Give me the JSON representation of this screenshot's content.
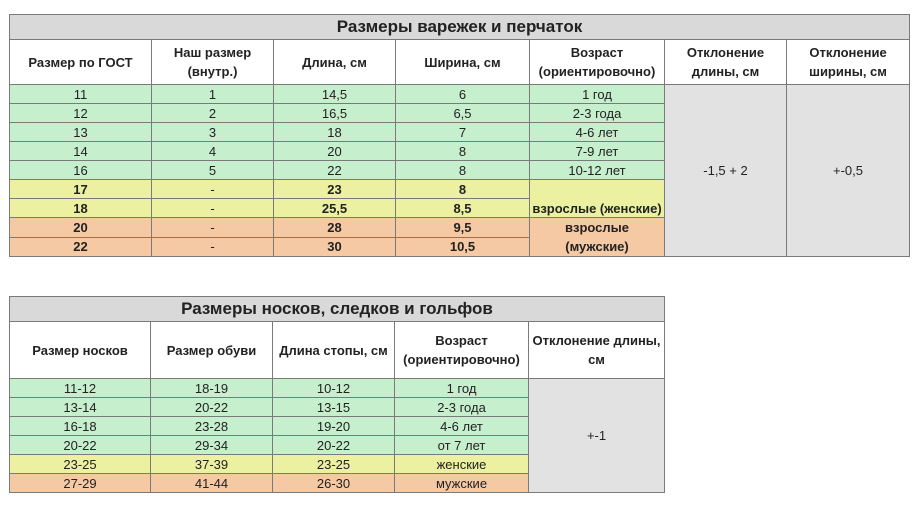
{
  "gloves": {
    "title": "Размеры варежек и перчаток",
    "headers": [
      "Размер по ГОСТ",
      "Наш размер (внутр.)",
      "Длина, см",
      "Ширина, см",
      "Возраст (ориентировочно)",
      "Отклонение длины, см",
      "Отклонение ширины, см"
    ],
    "rows": [
      {
        "gost": "11",
        "ours": "1",
        "length": "14,5",
        "width": "6",
        "age": "1 год"
      },
      {
        "gost": "12",
        "ours": "2",
        "length": "16,5",
        "width": "6,5",
        "age": "2-3 года"
      },
      {
        "gost": "13",
        "ours": "3",
        "length": "18",
        "width": "7",
        "age": "4-6 лет"
      },
      {
        "gost": "14",
        "ours": "4",
        "length": "20",
        "width": "8",
        "age": "7-9 лет"
      },
      {
        "gost": "16",
        "ours": "5",
        "length": "22",
        "width": "8",
        "age": "10-12 лет"
      },
      {
        "gost": "17",
        "ours": "-",
        "length": "23",
        "width": "8"
      },
      {
        "gost": "18",
        "ours": "-",
        "length": "25,5",
        "width": "8,5",
        "age": "взрослые (женские)"
      },
      {
        "gost": "20",
        "ours": "-",
        "length": "28",
        "width": "9,5",
        "age": "взрослые (мужские)"
      },
      {
        "gost": "22",
        "ours": "-",
        "length": "30",
        "width": "10,5"
      }
    ],
    "length_tolerance": "-1,5 + 2",
    "width_tolerance": "+-0,5"
  },
  "socks": {
    "title": "Размеры носков, следков и гольфов",
    "headers": [
      "Размер носков",
      "Размер обуви",
      "Длина стопы, см",
      "Возраст (ориентировочно)",
      "Отклонение длины, см"
    ],
    "rows": [
      {
        "sock": "11-12",
        "shoe": "18-19",
        "foot": "10-12",
        "age": "1 год"
      },
      {
        "sock": "13-14",
        "shoe": "20-22",
        "foot": "13-15",
        "age": "2-3 года"
      },
      {
        "sock": "16-18",
        "shoe": "23-28",
        "foot": "19-20",
        "age": "4-6 лет"
      },
      {
        "sock": "20-22",
        "shoe": "29-34",
        "foot": "20-22",
        "age": "от 7 лет"
      },
      {
        "sock": "23-25",
        "shoe": "37-39",
        "foot": "23-25",
        "age": "женские"
      },
      {
        "sock": "27-29",
        "shoe": "41-44",
        "foot": "26-30",
        "age": "мужские"
      }
    ],
    "length_tolerance": "+-1"
  }
}
